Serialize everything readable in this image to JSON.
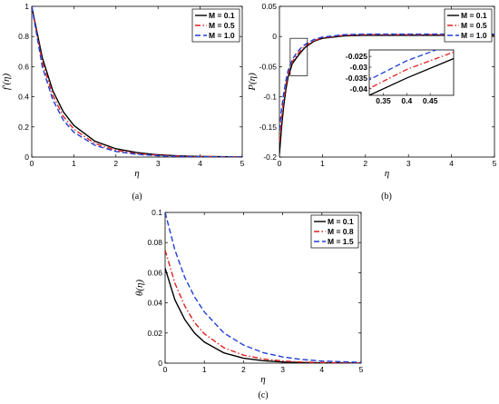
{
  "chart_data": [
    {
      "type": "line",
      "panel": "a",
      "caption": "(a)",
      "xlabel": "η",
      "ylabel": "f′(η)",
      "xlim": [
        0,
        5
      ],
      "ylim": [
        0,
        1
      ],
      "xticks": [
        0,
        1,
        2,
        3,
        4,
        5
      ],
      "yticks": [
        0,
        0.2,
        0.4,
        0.6,
        0.8,
        1
      ],
      "legend_position": "top-right",
      "series": [
        {
          "name": "M = 0.1",
          "color": "#000000",
          "dash": "solid",
          "x": [
            0,
            0.25,
            0.5,
            0.75,
            1,
            1.5,
            2,
            2.5,
            3,
            3.5,
            4,
            5
          ],
          "y": [
            1,
            0.66,
            0.44,
            0.3,
            0.21,
            0.105,
            0.055,
            0.03,
            0.015,
            0.008,
            0.004,
            0.001
          ]
        },
        {
          "name": "M = 0.5",
          "color": "#e02020",
          "dash": "dashdot",
          "x": [
            0,
            0.25,
            0.5,
            0.75,
            1,
            1.5,
            2,
            2.5,
            3,
            3.5,
            4,
            5
          ],
          "y": [
            1,
            0.63,
            0.41,
            0.27,
            0.185,
            0.09,
            0.045,
            0.023,
            0.012,
            0.006,
            0.003,
            0.0008
          ]
        },
        {
          "name": "M = 1.0",
          "color": "#1f3fd6",
          "dash": "dash",
          "x": [
            0,
            0.25,
            0.5,
            0.75,
            1,
            1.5,
            2,
            2.5,
            3,
            3.5,
            4,
            5
          ],
          "y": [
            1,
            0.6,
            0.38,
            0.245,
            0.165,
            0.078,
            0.037,
            0.018,
            0.009,
            0.004,
            0.002,
            0.0005
          ]
        }
      ]
    },
    {
      "type": "line",
      "panel": "b",
      "caption": "(b)",
      "xlabel": "η",
      "ylabel": "P(η)",
      "xlim": [
        0,
        5
      ],
      "ylim": [
        -0.2,
        0.05
      ],
      "xticks": [
        0,
        1,
        2,
        3,
        4,
        5
      ],
      "yticks": [
        -0.2,
        -0.15,
        -0.1,
        -0.05,
        0,
        0.05
      ],
      "legend_position": "top-right",
      "inset": {
        "xlim": [
          0.32,
          0.5
        ],
        "ylim": [
          -0.043,
          -0.022
        ],
        "xticks": [
          0.35,
          0.4,
          0.45
        ],
        "yticks": [
          -0.025,
          -0.03,
          -0.035,
          -0.04
        ]
      },
      "series": [
        {
          "name": "M = 0.1",
          "color": "#000000",
          "dash": "solid",
          "x": [
            0,
            0.05,
            0.1,
            0.15,
            0.2,
            0.3,
            0.4,
            0.5,
            0.6,
            0.8,
            1,
            1.5,
            2,
            3,
            4,
            5
          ],
          "y": [
            -0.195,
            -0.15,
            -0.115,
            -0.088,
            -0.068,
            -0.045,
            -0.035,
            -0.026,
            -0.018,
            -0.008,
            -0.003,
            0.001,
            0.002,
            0.002,
            0.002,
            0.002
          ]
        },
        {
          "name": "M = 0.5",
          "color": "#e02020",
          "dash": "dashdot",
          "x": [
            0,
            0.05,
            0.1,
            0.15,
            0.2,
            0.3,
            0.4,
            0.5,
            0.6,
            0.8,
            1,
            1.5,
            2,
            3,
            4,
            5
          ],
          "y": [
            -0.175,
            -0.135,
            -0.104,
            -0.08,
            -0.063,
            -0.042,
            -0.031,
            -0.023,
            -0.016,
            -0.007,
            -0.002,
            0.002,
            0.003,
            0.003,
            0.003,
            0.003
          ]
        },
        {
          "name": "M = 1.0",
          "color": "#1f3fd6",
          "dash": "dash",
          "x": [
            0,
            0.05,
            0.1,
            0.15,
            0.2,
            0.3,
            0.4,
            0.5,
            0.6,
            0.8,
            1,
            1.5,
            2,
            3,
            4,
            5
          ],
          "y": [
            -0.155,
            -0.12,
            -0.094,
            -0.073,
            -0.057,
            -0.038,
            -0.027,
            -0.019,
            -0.013,
            -0.005,
            -0.001,
            0.003,
            0.004,
            0.004,
            0.004,
            0.004
          ]
        }
      ]
    },
    {
      "type": "line",
      "panel": "c",
      "caption": "(c)",
      "xlabel": "η",
      "ylabel": "θ(η)",
      "xlim": [
        0,
        5
      ],
      "ylim": [
        0,
        0.1
      ],
      "xticks": [
        0,
        1,
        2,
        3,
        4,
        5
      ],
      "yticks": [
        0,
        0.02,
        0.04,
        0.06,
        0.08,
        0.1
      ],
      "legend_position": "top-right",
      "series": [
        {
          "name": "M = 0.1",
          "color": "#000000",
          "dash": "solid",
          "x": [
            0,
            0.25,
            0.5,
            0.75,
            1,
            1.5,
            2,
            2.5,
            3,
            3.5,
            4,
            5
          ],
          "y": [
            0.063,
            0.042,
            0.029,
            0.02,
            0.014,
            0.0068,
            0.0033,
            0.0016,
            0.0008,
            0.0004,
            0.0002,
            0.0
          ]
        },
        {
          "name": "M = 0.8",
          "color": "#e02020",
          "dash": "dashdot",
          "x": [
            0,
            0.25,
            0.5,
            0.75,
            1,
            1.5,
            2,
            2.5,
            3,
            3.5,
            4,
            5
          ],
          "y": [
            0.075,
            0.053,
            0.038,
            0.027,
            0.0195,
            0.0102,
            0.0053,
            0.0028,
            0.0014,
            0.0007,
            0.0004,
            0.0001
          ]
        },
        {
          "name": "M = 1.5",
          "color": "#1f3fd6",
          "dash": "dash",
          "x": [
            0,
            0.25,
            0.5,
            0.75,
            1,
            1.5,
            2,
            2.5,
            3,
            3.5,
            4,
            5
          ],
          "y": [
            0.1,
            0.075,
            0.057,
            0.044,
            0.034,
            0.02,
            0.012,
            0.007,
            0.0041,
            0.0024,
            0.0014,
            0.0005
          ]
        }
      ]
    }
  ]
}
